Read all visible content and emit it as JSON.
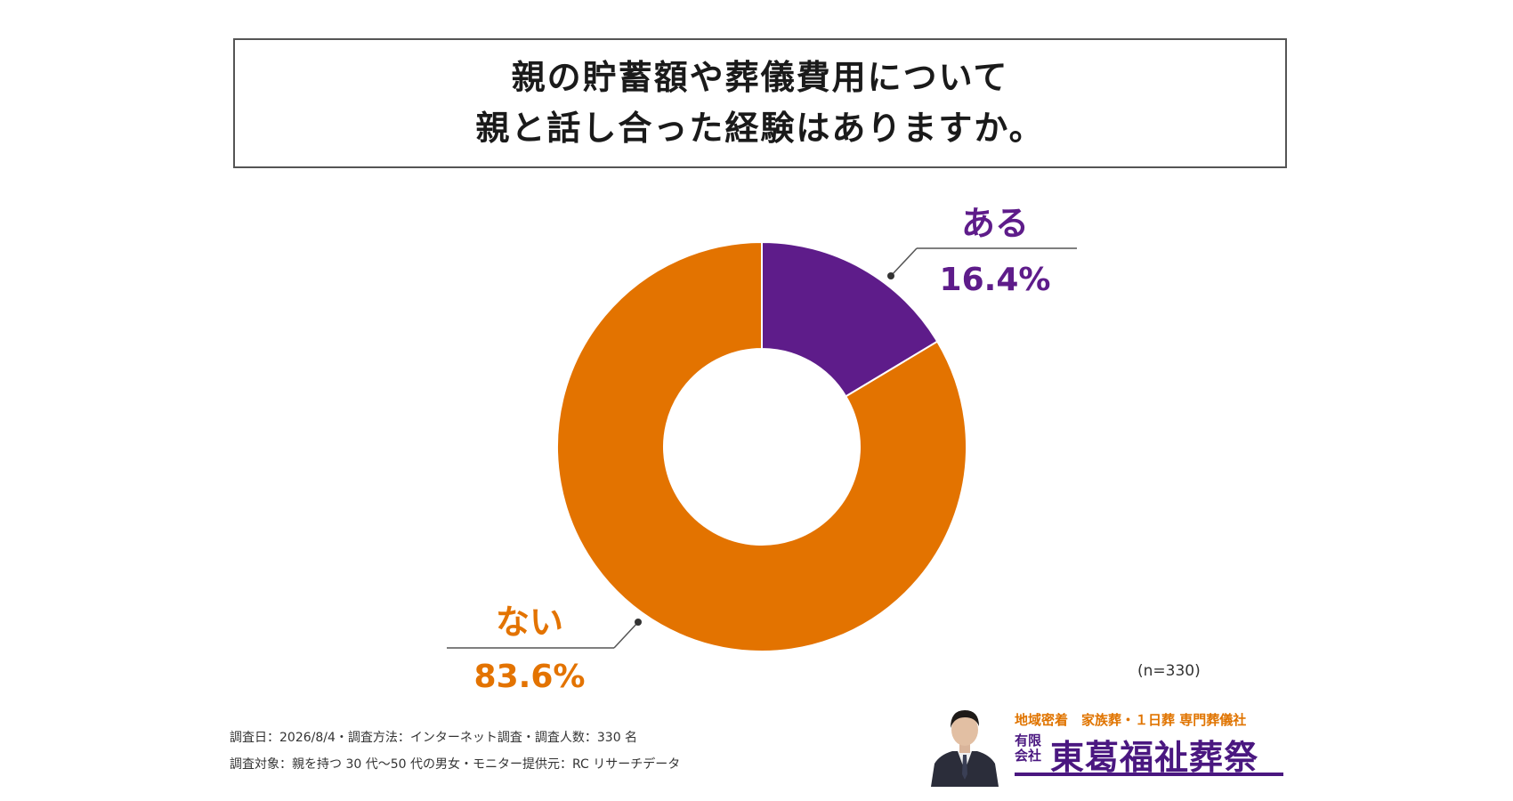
{
  "title": {
    "line1": "親の貯蓄額や葬儀費用について",
    "line2": "親と話し合った経験はありますか。"
  },
  "chart_data": {
    "type": "pie",
    "donut": true,
    "series": [
      {
        "name": "ある",
        "value": 16.4,
        "label": "16.4%",
        "color": "#5e1c8a"
      },
      {
        "name": "ない",
        "value": 83.6,
        "label": "83.6%",
        "color": "#e37300"
      }
    ],
    "sample_size": "(n=330)"
  },
  "footnotes": {
    "line1": "調査日：2026/8/4・調査方法：インターネット調査・調査人数：330 名",
    "line2": "調査対象：親を持つ 30 代〜50 代の男女・モニター提供元：RC リサーチデータ"
  },
  "brand": {
    "tagline": "地域密着　家族葬・１日葬 専門葬儀社",
    "company_type": "有限会社",
    "name": "東葛福祉葬祭",
    "color_primary": "#4a1780",
    "color_accent": "#e07400",
    "icon": "person-in-suit-photo"
  }
}
